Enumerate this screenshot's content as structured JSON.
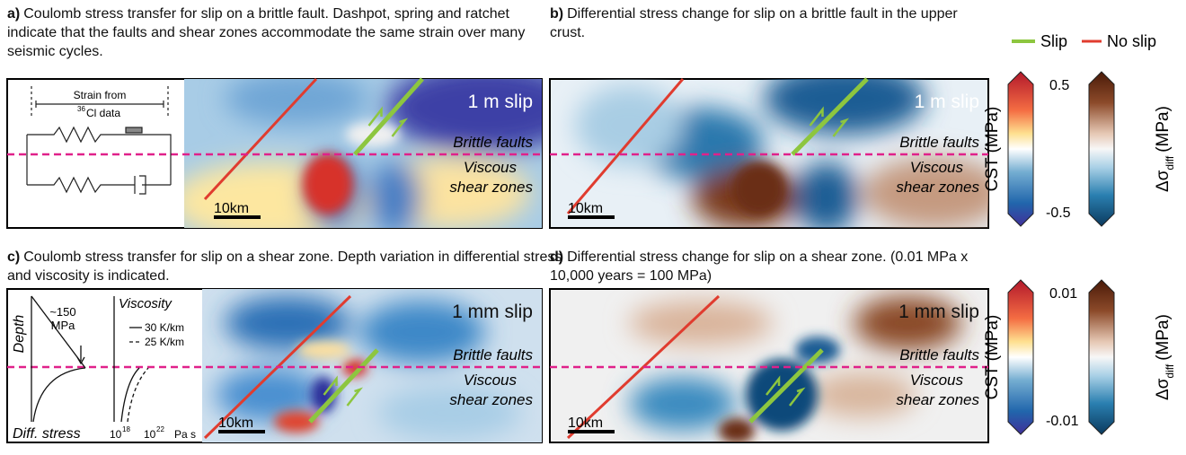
{
  "legend": {
    "slip": "Slip",
    "no_slip": "No slip"
  },
  "panels": [
    {
      "label": "a)",
      "caption": "Coulomb stress transfer for slip on a brittle fault.  Dashpot, spring and ratchet indicate that the faults and shear zones accommodate the same strain over many seismic cycles.",
      "map": {
        "slip": "1 m slip",
        "brittle": "Brittle faults",
        "viscous": "Viscous",
        "shear": "shear zones",
        "scale": "10km"
      },
      "inset": {
        "strain": "Strain from",
        "isotope": "36",
        "data": "Cl data"
      }
    },
    {
      "label": "b)",
      "caption": "Differential stress change for slip on a brittle fault in the upper crust.",
      "map": {
        "slip": "1 m slip",
        "brittle": "Brittle faults",
        "viscous": "Viscous",
        "shear": "shear zones",
        "scale": "10km"
      }
    },
    {
      "label": "c)",
      "caption": "Coulomb stress transfer for slip on a shear zone. Depth variation in differential stress and viscosity is indicated.",
      "map": {
        "slip": "1 mm slip",
        "brittle": "Brittle faults",
        "viscous": "Viscous",
        "shear": "shear zones",
        "scale": "10km"
      },
      "inset": {
        "stress": "~150",
        "stress_unit": "MPa",
        "depth": "Depth",
        "diff_stress": "Diff. stress",
        "viscosity": "Viscosity",
        "geotherm_1": "30 K/km",
        "geotherm_2": "25 K/km",
        "low_base": "10",
        "low_exp": "18",
        "high_base": "10",
        "high_exp": "22",
        "unit": "Pa s"
      }
    },
    {
      "label": "d)",
      "caption": "Differential stress change for slip on a shear zone. (0.01 MPa  x 10,000 years = 100 MPa)",
      "map": {
        "slip": "1 mm slip",
        "brittle": "Brittle faults",
        "viscous": "Viscous",
        "shear": "shear zones",
        "scale": "10km"
      }
    }
  ],
  "colorbars": [
    {
      "cst": "CST (MPa)",
      "max": "0.5",
      "min": "-0.5",
      "diff_symbol": "Δσ",
      "diff_sub": "diff",
      "diff_unit": "(MPa)"
    },
    {
      "cst": "CST (MPa)",
      "max": "0.01",
      "min": "-0.01",
      "diff_symbol": "Δσ",
      "diff_sub": "diff",
      "diff_unit": "(MPa)"
    }
  ]
}
